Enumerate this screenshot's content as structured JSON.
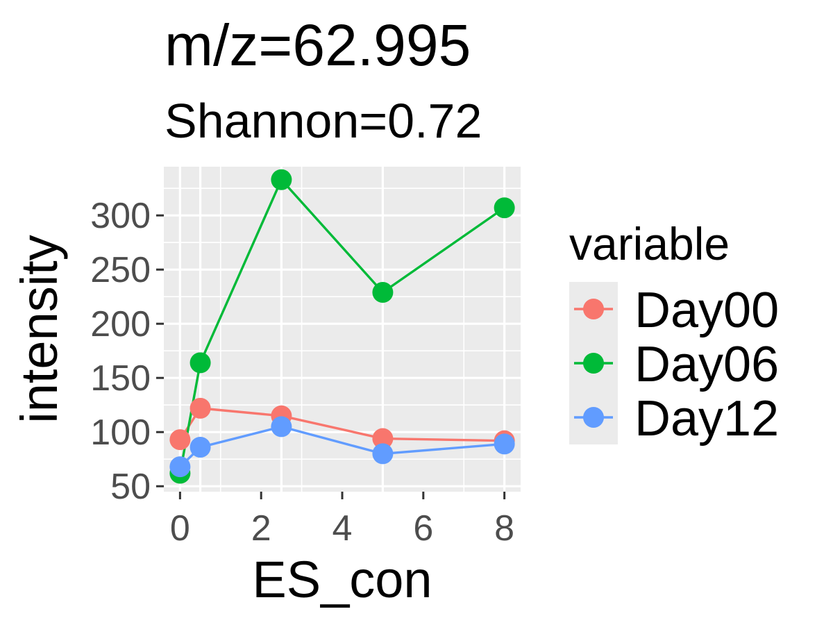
{
  "chart_data": {
    "type": "line",
    "title": "m/z=62.995",
    "subtitle": "Shannon=0.72",
    "xlabel": "ES_con",
    "ylabel": "intensity",
    "x": [
      0,
      0.5,
      2.5,
      5,
      8
    ],
    "xlim": [
      -0.4,
      8.4
    ],
    "ylim": [
      45,
      345
    ],
    "x_ticks": [
      "0",
      "2",
      "4",
      "6",
      "8"
    ],
    "y_ticks": [
      "50",
      "100",
      "150",
      "200",
      "250",
      "300"
    ],
    "grid": true,
    "panel_background": "#EBEBEB",
    "legend": {
      "title": "variable",
      "position": "right"
    },
    "series": [
      {
        "name": "Day00",
        "color": "#F8766D",
        "values": [
          93,
          122,
          115,
          94,
          92
        ]
      },
      {
        "name": "Day06",
        "color": "#00BA38",
        "values": [
          62,
          164,
          333,
          229,
          307
        ]
      },
      {
        "name": "Day12",
        "color": "#619CFF",
        "values": [
          68,
          86,
          105,
          80,
          89
        ]
      }
    ]
  }
}
